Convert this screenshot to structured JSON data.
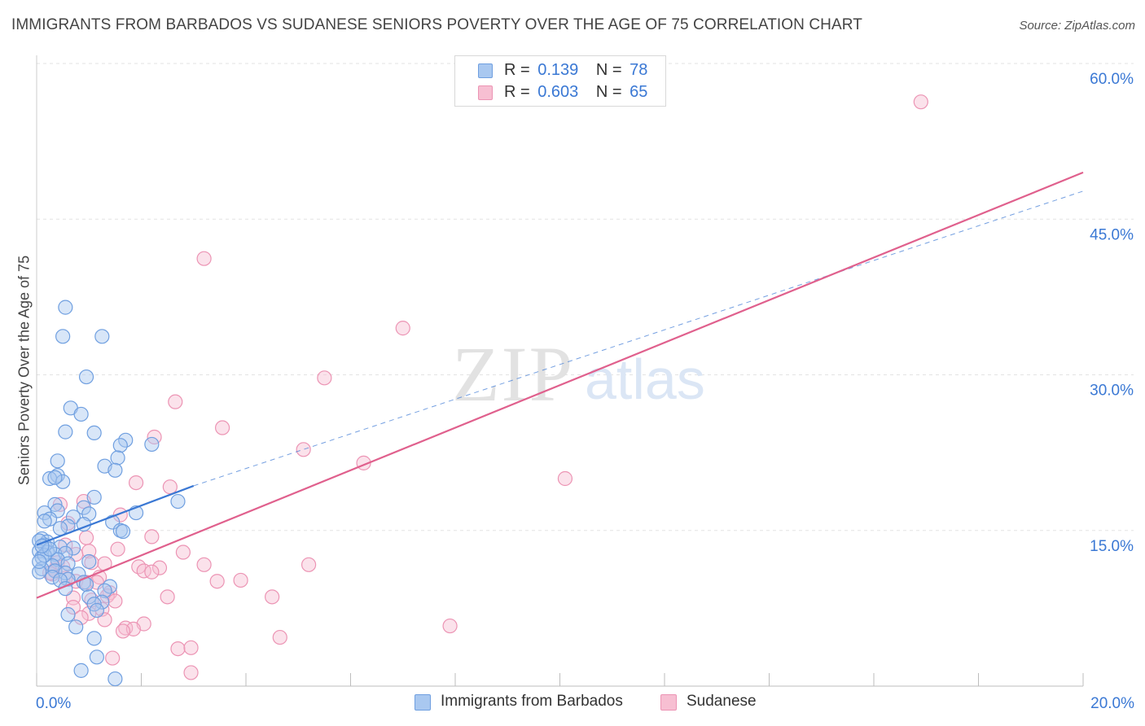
{
  "title": "IMMIGRANTS FROM BARBADOS VS SUDANESE SENIORS POVERTY OVER THE AGE OF 75 CORRELATION CHART",
  "source": "Source: ZipAtlas.com",
  "watermark": {
    "zip": "ZIP",
    "atlas": "atlas"
  },
  "legend": {
    "r_label": "R =",
    "n_label": "N =",
    "series": [
      {
        "name": "Immigrants from Barbados",
        "r": "0.139",
        "n": "78"
      },
      {
        "name": "Sudanese",
        "r": "0.603",
        "n": "65"
      }
    ]
  },
  "chart_data": {
    "type": "scatter",
    "title": "IMMIGRANTS FROM BARBADOS VS SUDANESE SENIORS POVERTY OVER THE AGE OF 75 CORRELATION CHART",
    "xlabel": "",
    "ylabel": "Seniors Poverty Over the Age of 75",
    "xlim": [
      0,
      20
    ],
    "ylim": [
      0,
      60
    ],
    "x_tick_labels": [
      "0.0%",
      "20.0%"
    ],
    "y_ticks": [
      15,
      30,
      45,
      60
    ],
    "y_tick_labels": [
      "15.0%",
      "30.0%",
      "45.0%",
      "60.0%"
    ],
    "grid": true,
    "legend_position": "top-center",
    "colors": {
      "barbados_fill": "#a9c8f0",
      "barbados_stroke": "#6f9fe0",
      "barbados_line": "#3a78d4",
      "sudanese_fill": "#f7bfd2",
      "sudanese_stroke": "#ec94b4",
      "sudanese_line": "#e0608d",
      "tick_label": "#3a78d4",
      "grid": "#e3e3e3"
    },
    "series": [
      {
        "name": "Immigrants from Barbados",
        "r": 0.139,
        "n": 78,
        "trend": {
          "x0": 0,
          "y0": 13.6,
          "x1": 3.0,
          "y1": 19.3,
          "dashed_to_x": 20,
          "dashed_to_y": 47.7
        },
        "points": [
          [
            0.55,
            36.5
          ],
          [
            0.5,
            33.7
          ],
          [
            1.25,
            33.7
          ],
          [
            0.95,
            29.8
          ],
          [
            0.65,
            26.8
          ],
          [
            0.85,
            26.2
          ],
          [
            0.55,
            24.5
          ],
          [
            1.1,
            24.4
          ],
          [
            1.7,
            23.7
          ],
          [
            1.6,
            23.2
          ],
          [
            2.2,
            23.3
          ],
          [
            1.55,
            22.0
          ],
          [
            0.4,
            21.7
          ],
          [
            1.3,
            21.2
          ],
          [
            1.5,
            20.8
          ],
          [
            0.4,
            20.3
          ],
          [
            0.25,
            20.0
          ],
          [
            0.5,
            19.7
          ],
          [
            0.35,
            20.1
          ],
          [
            1.1,
            18.2
          ],
          [
            2.7,
            17.8
          ],
          [
            0.35,
            17.5
          ],
          [
            0.9,
            17.2
          ],
          [
            0.4,
            16.9
          ],
          [
            0.15,
            16.7
          ],
          [
            1.0,
            16.6
          ],
          [
            1.9,
            16.7
          ],
          [
            0.7,
            16.3
          ],
          [
            0.25,
            16.1
          ],
          [
            0.15,
            15.9
          ],
          [
            0.6,
            15.4
          ],
          [
            0.9,
            15.6
          ],
          [
            0.45,
            15.2
          ],
          [
            1.45,
            15.8
          ],
          [
            1.6,
            15.0
          ],
          [
            1.65,
            14.9
          ],
          [
            0.1,
            14.2
          ],
          [
            0.2,
            13.9
          ],
          [
            0.15,
            13.6
          ],
          [
            0.45,
            13.4
          ],
          [
            0.7,
            13.3
          ],
          [
            0.05,
            13.0
          ],
          [
            0.2,
            12.9
          ],
          [
            0.35,
            12.7
          ],
          [
            0.55,
            12.8
          ],
          [
            0.1,
            12.4
          ],
          [
            0.4,
            12.2
          ],
          [
            1.0,
            12.0
          ],
          [
            0.6,
            11.8
          ],
          [
            0.3,
            11.6
          ],
          [
            0.1,
            11.3
          ],
          [
            0.35,
            11.1
          ],
          [
            0.05,
            11.0
          ],
          [
            0.55,
            10.9
          ],
          [
            0.8,
            10.8
          ],
          [
            0.3,
            10.5
          ],
          [
            0.6,
            10.3
          ],
          [
            0.45,
            10.2
          ],
          [
            0.9,
            10.0
          ],
          [
            0.95,
            9.8
          ],
          [
            1.4,
            9.6
          ],
          [
            0.55,
            9.4
          ],
          [
            1.3,
            9.2
          ],
          [
            1.0,
            8.6
          ],
          [
            1.25,
            8.1
          ],
          [
            1.1,
            7.9
          ],
          [
            1.15,
            7.3
          ],
          [
            0.6,
            6.9
          ],
          [
            0.75,
            5.7
          ],
          [
            1.1,
            4.6
          ],
          [
            1.15,
            2.8
          ],
          [
            0.85,
            1.5
          ],
          [
            1.5,
            0.7
          ],
          [
            0.15,
            12.6
          ],
          [
            0.05,
            14.0
          ],
          [
            0.25,
            13.2
          ],
          [
            0.05,
            12.0
          ],
          [
            0.1,
            13.5
          ]
        ]
      },
      {
        "name": "Sudanese",
        "r": 0.603,
        "n": 65,
        "trend": {
          "x0": 0,
          "y0": 8.5,
          "x1": 20,
          "y1": 49.5
        },
        "points": [
          [
            16.9,
            56.3
          ],
          [
            3.2,
            41.2
          ],
          [
            7.0,
            34.5
          ],
          [
            5.5,
            29.7
          ],
          [
            2.65,
            27.4
          ],
          [
            3.55,
            24.9
          ],
          [
            2.25,
            24.0
          ],
          [
            5.1,
            22.8
          ],
          [
            6.25,
            21.5
          ],
          [
            10.1,
            20.0
          ],
          [
            1.9,
            19.6
          ],
          [
            2.55,
            19.2
          ],
          [
            0.9,
            17.8
          ],
          [
            0.45,
            17.5
          ],
          [
            1.6,
            16.5
          ],
          [
            0.6,
            15.7
          ],
          [
            2.2,
            14.4
          ],
          [
            0.95,
            14.3
          ],
          [
            0.55,
            13.6
          ],
          [
            1.55,
            13.2
          ],
          [
            1.0,
            13.0
          ],
          [
            2.8,
            12.9
          ],
          [
            0.75,
            12.7
          ],
          [
            0.4,
            11.9
          ],
          [
            1.05,
            11.9
          ],
          [
            1.3,
            11.8
          ],
          [
            3.2,
            11.7
          ],
          [
            5.2,
            11.7
          ],
          [
            1.95,
            11.5
          ],
          [
            2.35,
            11.4
          ],
          [
            2.05,
            11.1
          ],
          [
            2.2,
            11.0
          ],
          [
            0.3,
            10.8
          ],
          [
            1.2,
            10.5
          ],
          [
            0.55,
            10.4
          ],
          [
            0.75,
            10.1
          ],
          [
            0.95,
            10.0
          ],
          [
            1.15,
            10.0
          ],
          [
            3.45,
            10.1
          ],
          [
            1.4,
            9.0
          ],
          [
            1.35,
            8.7
          ],
          [
            2.5,
            8.6
          ],
          [
            4.5,
            8.6
          ],
          [
            0.7,
            8.5
          ],
          [
            1.05,
            8.3
          ],
          [
            1.5,
            8.2
          ],
          [
            1.25,
            7.4
          ],
          [
            0.7,
            7.6
          ],
          [
            1.3,
            6.4
          ],
          [
            2.05,
            6.0
          ],
          [
            1.7,
            5.6
          ],
          [
            1.85,
            5.5
          ],
          [
            1.65,
            5.3
          ],
          [
            7.9,
            5.8
          ],
          [
            4.65,
            4.7
          ],
          [
            2.7,
            3.6
          ],
          [
            2.95,
            3.7
          ],
          [
            1.45,
            2.7
          ],
          [
            2.95,
            1.3
          ],
          [
            0.35,
            11.2
          ],
          [
            0.5,
            11.5
          ],
          [
            0.25,
            10.9
          ],
          [
            1.0,
            7.0
          ],
          [
            0.85,
            6.6
          ],
          [
            3.9,
            10.2
          ]
        ]
      }
    ]
  }
}
